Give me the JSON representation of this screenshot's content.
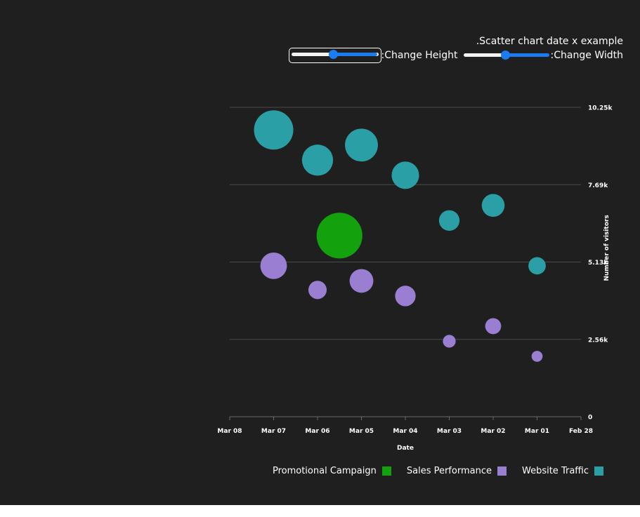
{
  "header": {
    "title": ".Scatter chart date x example",
    "height_control": {
      "label": ":Change Height",
      "value": 0.5
    },
    "width_control": {
      "label": ":Change Width",
      "value": 0.5
    }
  },
  "chart_data": {
    "type": "scatter",
    "xlabel": "Date",
    "ylabel": "Number of visitors",
    "x_axis_reversed": true,
    "x_ticks": [
      "Mar 08",
      "Mar 07",
      "Mar 06",
      "Mar 05",
      "Mar 04",
      "Mar 03",
      "Mar 02",
      "Mar 01",
      "Feb 28"
    ],
    "y_ticks": [
      "0",
      "2.56k",
      "5.13k",
      "7.69k",
      "10.25k"
    ],
    "ylim": [
      0,
      10250
    ],
    "grid": "horizontal",
    "legend_position": "bottom-right",
    "series": [
      {
        "name": "Promotional Campaign",
        "color": "#13a10e",
        "points": [
          {
            "x": "Mar 05 12:00",
            "y": 6000,
            "size": 1.0
          }
        ]
      },
      {
        "name": "Sales Performance",
        "color": "#9a7ed1",
        "points": [
          {
            "x": "Mar 07",
            "y": 5000,
            "size": 0.58
          },
          {
            "x": "Mar 06",
            "y": 4200,
            "size": 0.4
          },
          {
            "x": "Mar 05",
            "y": 4500,
            "size": 0.52
          },
          {
            "x": "Mar 04",
            "y": 4000,
            "size": 0.45
          },
          {
            "x": "Mar 03",
            "y": 2500,
            "size": 0.28
          },
          {
            "x": "Mar 02",
            "y": 3000,
            "size": 0.35
          },
          {
            "x": "Mar 01",
            "y": 2000,
            "size": 0.24
          }
        ]
      },
      {
        "name": "Website Traffic",
        "color": "#2a9fa6",
        "points": [
          {
            "x": "Mar 07",
            "y": 9500,
            "size": 0.86
          },
          {
            "x": "Mar 06",
            "y": 8500,
            "size": 0.68
          },
          {
            "x": "Mar 05",
            "y": 9000,
            "size": 0.72
          },
          {
            "x": "Mar 04",
            "y": 8000,
            "size": 0.6
          },
          {
            "x": "Mar 03",
            "y": 6500,
            "size": 0.45
          },
          {
            "x": "Mar 02",
            "y": 7000,
            "size": 0.5
          },
          {
            "x": "Mar 01",
            "y": 5000,
            "size": 0.38
          }
        ]
      }
    ]
  }
}
